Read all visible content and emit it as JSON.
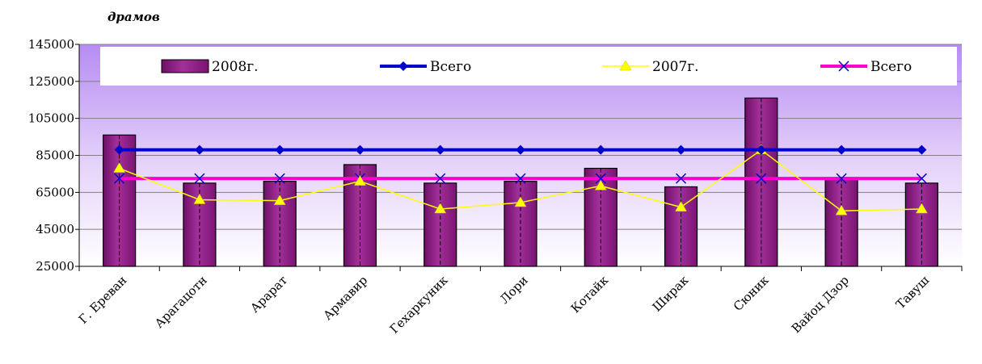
{
  "unit_label": "драмов",
  "chart_data": {
    "type": "bar",
    "categories": [
      "Г. Ереван",
      "Арагацотн",
      "Арарат",
      "Армавир",
      "Гехаркуник",
      "Лори",
      "Котайк",
      "Ширак",
      "Сюник",
      "Вайоц Дзор",
      "Тавуш"
    ],
    "ylim": [
      25000,
      145000
    ],
    "yticks": [
      25000,
      45000,
      65000,
      85000,
      105000,
      125000,
      145000
    ],
    "grid": true,
    "legend_position": "top",
    "series": [
      {
        "name": "2008г.",
        "type": "bar",
        "color": "#8b1a82",
        "values": [
          96000,
          70000,
          71000,
          80000,
          70000,
          71000,
          78000,
          68000,
          116000,
          73000,
          70000
        ]
      },
      {
        "name": "Всего",
        "type": "line",
        "marker": "diamond",
        "color": "#0000cc",
        "values": [
          88000,
          88000,
          88000,
          88000,
          88000,
          88000,
          88000,
          88000,
          88000,
          88000,
          88000
        ]
      },
      {
        "name": "2007г.",
        "type": "line",
        "marker": "triangle",
        "color": "#ffff00",
        "values": [
          78000,
          61000,
          60500,
          71000,
          56000,
          59500,
          68500,
          57000,
          88000,
          55000,
          56000
        ]
      },
      {
        "name": "Всего",
        "type": "line",
        "marker": "x",
        "color": "#ff00cc",
        "values": [
          72500,
          72500,
          72500,
          72500,
          72500,
          72500,
          72500,
          72500,
          72500,
          72500,
          72500
        ]
      }
    ]
  }
}
